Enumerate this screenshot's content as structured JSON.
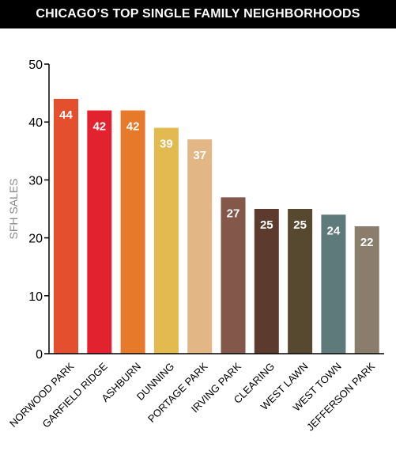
{
  "title": "CHICAGO’S TOP SINGLE FAMILY NEIGHBORHOODS",
  "colors": {
    "title_bar": "#000000",
    "title_text": "#ffffff",
    "axis": "#000000",
    "ylabel": "#8a8a8a",
    "value_label": "#ffffff"
  },
  "chart_data": {
    "type": "bar",
    "title": "CHICAGO’S TOP SINGLE FAMILY NEIGHBORHOODS",
    "xlabel": "",
    "ylabel": "SFH SALES",
    "ylim": [
      0,
      50
    ],
    "yticks": [
      0,
      10,
      20,
      30,
      40,
      50
    ],
    "grid": false,
    "categories": [
      "NORWOOD PARK",
      "GARFIELD RIDGE",
      "ASHBURN",
      "DUNNING",
      "PORTAGE PARK",
      "IRVING PARK",
      "CLEARING",
      "WEST LAWN",
      "WEST TOWN",
      "JEFFERSON PARK"
    ],
    "values": [
      44,
      42,
      42,
      39,
      37,
      27,
      25,
      25,
      24,
      22
    ],
    "bar_colors": [
      "#e4502e",
      "#e2222e",
      "#e67a2a",
      "#e2ba50",
      "#e3b686",
      "#83584a",
      "#5c3b2e",
      "#57492f",
      "#5f7a7b",
      "#8a7d6c"
    ]
  }
}
